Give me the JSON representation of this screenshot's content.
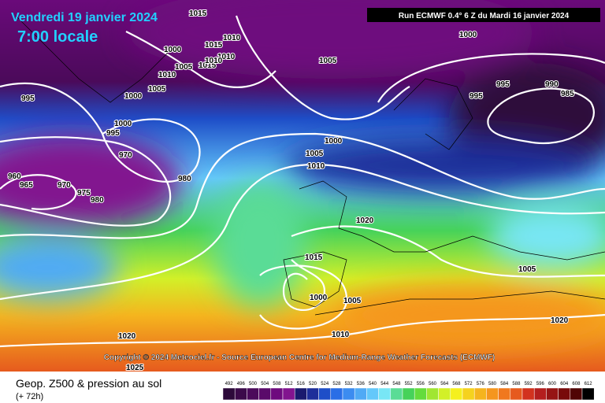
{
  "header": {
    "date": "Vendredi 19 janvier 2024",
    "time": "7:00 locale",
    "run": "Run ECMWF 0.4° 6 Z du Mardi 16 janvier 2024"
  },
  "copyright": "Copyright © 2024 Meteociel.fr - Source European Centre for Medium-Range Weather Forecasts (ECMWF)",
  "footer": {
    "title": "Geop. Z500 & pression au sol",
    "lead": "(+ 72h)"
  },
  "legend": {
    "values": [
      492,
      496,
      500,
      504,
      508,
      512,
      516,
      520,
      524,
      528,
      532,
      536,
      540,
      544,
      548,
      552,
      556,
      560,
      564,
      568,
      572,
      576,
      580,
      584,
      588,
      592,
      596,
      600,
      604,
      608,
      612
    ],
    "colors": [
      "#2d0a3a",
      "#3c0a4a",
      "#4b0a5a",
      "#5a0a6a",
      "#6e0a7e",
      "#82148f",
      "#1a1a6e",
      "#1e2e9a",
      "#1e4ec8",
      "#2a6ee6",
      "#3c8cf0",
      "#50aaf5",
      "#64c8fa",
      "#78e6f5",
      "#5adc96",
      "#46d25a",
      "#64dc3c",
      "#a0e632",
      "#d2f028",
      "#f5f01e",
      "#f5d21e",
      "#f5b41e",
      "#f5961e",
      "#f0781e",
      "#e65a1e",
      "#d2321e",
      "#b41e1e",
      "#961414",
      "#780a0a",
      "#500505",
      "#000000"
    ]
  },
  "isobar_labels": [
    "1015",
    "1010",
    "1015",
    "1010",
    "1000",
    "1005",
    "1005",
    "1015",
    "995",
    "1010",
    "1005",
    "1000",
    "1000",
    "985",
    "995",
    "970",
    "960",
    "965",
    "970",
    "975",
    "980",
    "980",
    "1000",
    "1005",
    "1010",
    "1020",
    "1015",
    "1000",
    "1005",
    "1010",
    "1020",
    "1025",
    "995",
    "990",
    "985",
    "1010",
    "1005",
    "1020",
    "1000",
    "995"
  ]
}
